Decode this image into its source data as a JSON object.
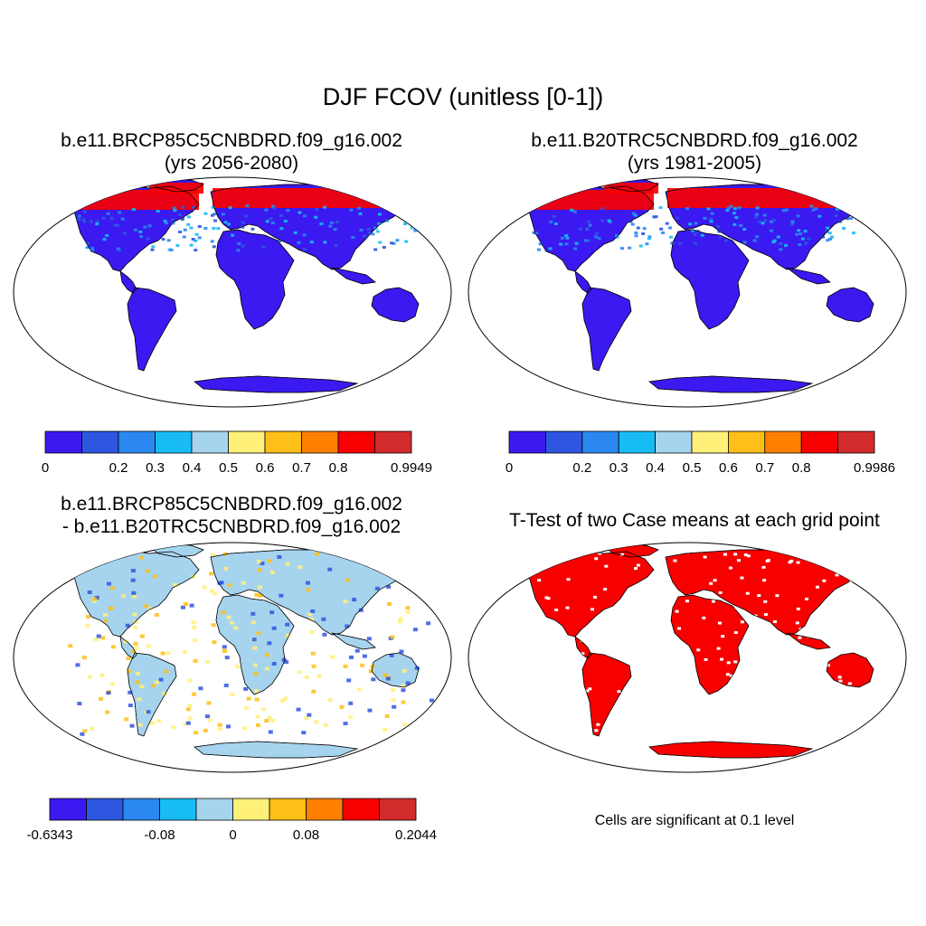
{
  "title": "DJF FCOV (unitless [0-1])",
  "panels": [
    {
      "name": "case",
      "title_line1": "b.e11.BRCP85C5CNBDRD.f09_g16.002",
      "title_line2": "(yrs 2056-2080)"
    },
    {
      "name": "control",
      "title_line1": "b.e11.B20TRC5CNBDRD.f09_g16.002",
      "title_line2": "(yrs 1981-2005)"
    },
    {
      "name": "difference",
      "title_line1": "b.e11.BRCP85C5CNBDRD.f09_g16.002",
      "title_line2": "- b.e11.B20TRC5CNBDRD.f09_g16.002"
    },
    {
      "name": "ttest",
      "title_line1": "T-Test of two Case means at each grid point",
      "title_line2": ""
    }
  ],
  "colorbars": [
    {
      "name": "case-colorbar",
      "colors": [
        "#3a1af0",
        "#2f56e0",
        "#2a88f0",
        "#18bcf5",
        "#a6d4ee",
        "#fff07a",
        "#fdbf18",
        "#fd8000",
        "#f80000",
        "#d32b2b"
      ],
      "labels": [
        {
          "text": "0",
          "at": 0
        },
        {
          "text": "0.2",
          "at": 2
        },
        {
          "text": "0.3",
          "at": 3
        },
        {
          "text": "0.4",
          "at": 4
        },
        {
          "text": "0.5",
          "at": 5
        },
        {
          "text": "0.6",
          "at": 6
        },
        {
          "text": "0.7",
          "at": 7
        },
        {
          "text": "0.8",
          "at": 8
        },
        {
          "text": "0.9949",
          "at": 10
        }
      ]
    },
    {
      "name": "control-colorbar",
      "colors": [
        "#3a1af0",
        "#2f56e0",
        "#2a88f0",
        "#18bcf5",
        "#a6d4ee",
        "#fff07a",
        "#fdbf18",
        "#fd8000",
        "#f80000",
        "#d32b2b"
      ],
      "labels": [
        {
          "text": "0",
          "at": 0
        },
        {
          "text": "0.2",
          "at": 2
        },
        {
          "text": "0.3",
          "at": 3
        },
        {
          "text": "0.4",
          "at": 4
        },
        {
          "text": "0.5",
          "at": 5
        },
        {
          "text": "0.6",
          "at": 6
        },
        {
          "text": "0.7",
          "at": 7
        },
        {
          "text": "0.8",
          "at": 8
        },
        {
          "text": "0.9986",
          "at": 10
        }
      ]
    },
    {
      "name": "difference-colorbar",
      "colors": [
        "#3a1af0",
        "#2f56e0",
        "#2a88f0",
        "#18bcf5",
        "#a6d4ee",
        "#fff07a",
        "#fdbf18",
        "#fd8000",
        "#f80000",
        "#d32b2b"
      ],
      "labels": [
        {
          "text": "-0.6343",
          "at": 0
        },
        {
          "text": "-0.08",
          "at": 3
        },
        {
          "text": "0",
          "at": 5
        },
        {
          "text": "0.08",
          "at": 7
        },
        {
          "text": "0.2044",
          "at": 10
        }
      ]
    }
  ],
  "significance_note": "Cells are significant at 0.1 level",
  "map_colors": {
    "case": [
      "#3a1af0",
      "#2f56e0",
      "#2a88f0",
      "#18bcf5",
      "#f80000"
    ],
    "control": [
      "#3a1af0",
      "#2f56e0",
      "#2a88f0",
      "#18bcf5",
      "#f80000"
    ],
    "difference": [
      "#a6d4ee",
      "#fff07a",
      "#2f56e0",
      "#fdbf18"
    ],
    "ttest": [
      "#f80000"
    ]
  }
}
